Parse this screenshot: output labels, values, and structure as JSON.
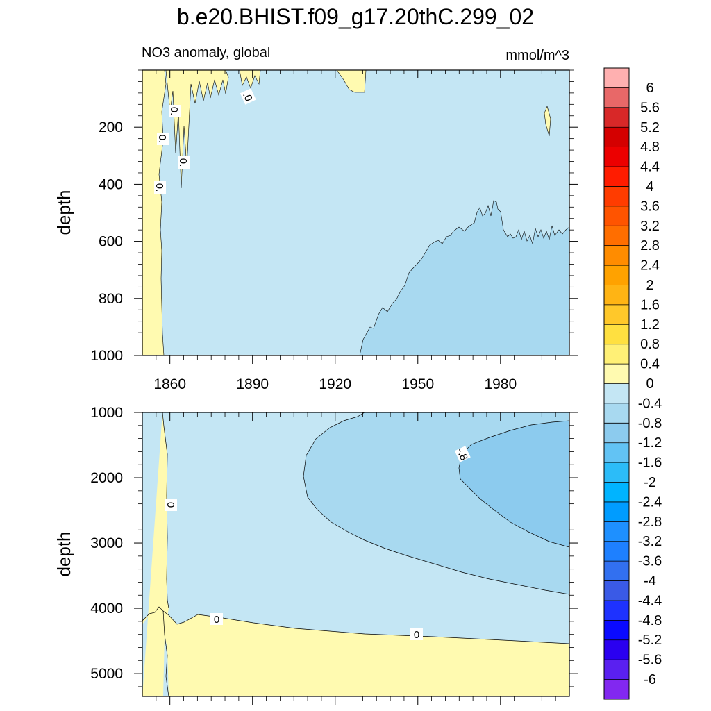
{
  "figure": {
    "title": "b.e20.BHIST.f09_g17.20thC.299_02",
    "subtitle_left": "NO3 anomaly, global",
    "subtitle_right": "mmol/m^3"
  },
  "colors": {
    "pos_0_04": "#fffab0",
    "neg_0_04": "#c4e6f4",
    "neg_04_08": "#a8d9f0",
    "neg_08_12": "#8ccbee",
    "line": "#000000"
  },
  "chart_data": [
    {
      "type": "heatmap",
      "name": "upper-depth-panel",
      "xlabel": "",
      "ylabel": "depth",
      "xlim": [
        1850,
        2005
      ],
      "ylim": [
        1000,
        0
      ],
      "y_reversed": true,
      "x_tick_labels": [
        "1860",
        "1890",
        "1920",
        "1950",
        "1980"
      ],
      "x_ticks": [
        1860,
        1890,
        1920,
        1950,
        1980
      ],
      "y_tick_labels": [
        "200",
        "400",
        "600",
        "800",
        "1000"
      ],
      "y_ticks": [
        200,
        400,
        600,
        800,
        1000
      ],
      "contour_labels": [
        ".0",
        "0.",
        "0.",
        "0.",
        "0.",
        ".0"
      ],
      "regions": [
        {
          "level": "0 to 0.4",
          "description": "positive anomaly near 1850-1858 at all depths; streaks above 200 m before 1900"
        },
        {
          "level": "-0.4 to 0",
          "description": "most of the panel"
        },
        {
          "level": "-0.8 to -0.4",
          "description": "below ~550-600 m after ~1930, deepening with time"
        }
      ],
      "boundary_deep_anomaly": {
        "x": [
          1932,
          1934,
          1940,
          1945,
          1950,
          1955,
          1960,
          1965,
          1970,
          1975,
          1980,
          1985,
          1990,
          1995,
          2000,
          2003
        ],
        "y": [
          1000,
          900,
          850,
          800,
          760,
          700,
          610,
          610,
          560,
          520,
          470,
          560,
          580,
          570,
          560,
          550
        ]
      }
    },
    {
      "type": "heatmap",
      "name": "lower-depth-panel",
      "xlabel": "",
      "ylabel": "depth",
      "xlim": [
        1850,
        2005
      ],
      "ylim": [
        5350,
        1000
      ],
      "y_reversed": true,
      "y_tick_labels": [
        "1000",
        "2000",
        "3000",
        "4000",
        "5000"
      ],
      "y_ticks": [
        1000,
        2000,
        3000,
        4000,
        5000
      ],
      "contour_labels": [
        "0",
        "0",
        "0",
        "-.8"
      ],
      "regions": [
        {
          "level": "0 to 0.4",
          "description": "thin column near 1858-1860 at all depths; bottom layer below ~4200-4500 m"
        },
        {
          "level": "-0.4 to 0",
          "description": "mid depths 1000-4400 m"
        },
        {
          "level": "-0.8 to -0.4",
          "description": "tongue from ~1910 onward between 1000 and 3800 m"
        },
        {
          "level": "-1.2 to -0.8",
          "description": "core after ~1965 between 1100 and 3050 m"
        }
      ]
    }
  ],
  "colorbar": {
    "labels": [
      "6",
      "5.6",
      "5.2",
      "4.8",
      "4.4",
      "4",
      "3.6",
      "3.2",
      "2.8",
      "2.4",
      "2",
      "1.6",
      "1.2",
      "0.8",
      "0.4",
      "0",
      "-0.4",
      "-0.8",
      "-1.2",
      "-1.6",
      "-2",
      "-2.4",
      "-2.8",
      "-3.2",
      "-3.6",
      "-4",
      "-4.4",
      "-4.8",
      "-5.2",
      "-5.6",
      "-6"
    ],
    "colors": [
      "#ffb0b0",
      "#e86868",
      "#d82828",
      "#d40000",
      "#ec0000",
      "#ff1c00",
      "#ff3c00",
      "#ff5400",
      "#ff6e00",
      "#ff8c00",
      "#ffa200",
      "#ffb414",
      "#ffc82a",
      "#ffe040",
      "#fff076",
      "#fffab0",
      "#c4e6f4",
      "#a8d9f0",
      "#8ccbee",
      "#62c3f4",
      "#2cbcf8",
      "#00b4ff",
      "#009cff",
      "#1e90ff",
      "#1e80ff",
      "#3270f0",
      "#3a5ae6",
      "#1e32ff",
      "#0a0aff",
      "#2a00f0",
      "#5a20f0",
      "#8228f0"
    ]
  }
}
